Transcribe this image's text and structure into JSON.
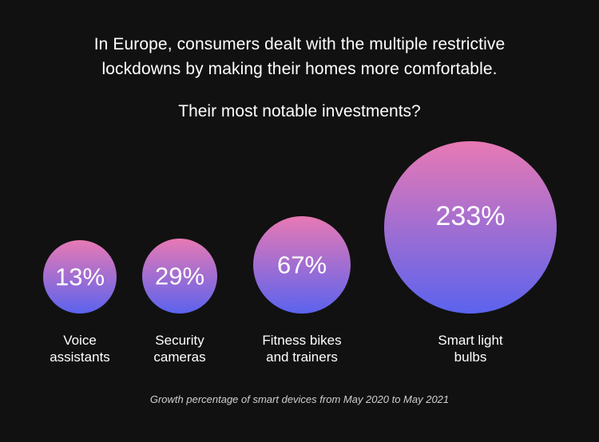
{
  "headline": {
    "line1": "In Europe, consumers dealt with the multiple restrictive",
    "line2": "lockdowns by making their homes more comfortable."
  },
  "question": "Their most notable investments?",
  "footnote": "Growth percentage of smart devices from May 2020 to May 2021",
  "colors": {
    "background": "#111111",
    "bubble_top": "#e879b4",
    "bubble_bottom": "#5b63ee"
  },
  "chart_data": {
    "type": "bubble",
    "categories": [
      [
        "Voice",
        "assistants"
      ],
      [
        "Security",
        "cameras"
      ],
      [
        "Fitness bikes",
        "and trainers"
      ],
      [
        "Smart light",
        "bulbs"
      ]
    ],
    "values": [
      13,
      29,
      67,
      233
    ],
    "data_labels": [
      "13%",
      "29%",
      "67%",
      "233%"
    ]
  }
}
